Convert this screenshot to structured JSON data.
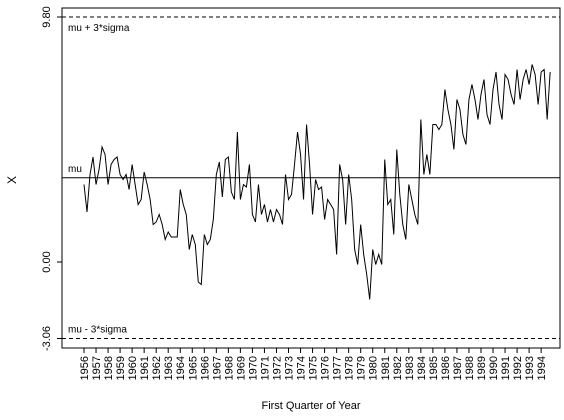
{
  "chart_data": {
    "type": "line",
    "x_label": "First Quarter of Year",
    "y_label": "X",
    "categories": [
      "1956",
      null,
      null,
      null,
      "1957",
      null,
      null,
      null,
      "1958",
      null,
      null,
      null,
      "1959",
      null,
      null,
      null,
      "1960",
      null,
      null,
      null,
      "1961",
      null,
      null,
      null,
      "1962",
      null,
      null,
      null,
      "1963",
      null,
      null,
      null,
      "1964",
      null,
      null,
      null,
      "1965",
      null,
      null,
      null,
      "1966",
      null,
      null,
      null,
      "1967",
      null,
      null,
      null,
      "1968",
      null,
      null,
      null,
      "1969",
      null,
      null,
      null,
      "1970",
      null,
      null,
      null,
      "1971",
      null,
      null,
      null,
      "1972",
      null,
      null,
      null,
      "1973",
      null,
      null,
      null,
      "1974",
      null,
      null,
      null,
      "1975",
      null,
      null,
      null,
      "1976",
      null,
      null,
      null,
      "1977",
      null,
      null,
      null,
      "1978",
      null,
      null,
      null,
      "1979",
      null,
      null,
      null,
      "1980",
      null,
      null,
      null,
      "1981",
      null,
      null,
      null,
      "1982",
      null,
      null,
      null,
      "1983",
      null,
      null,
      null,
      "1984",
      null,
      null,
      null,
      "1985",
      null,
      null,
      null,
      "1986",
      null,
      null,
      null,
      "1987",
      null,
      null,
      null,
      "1988",
      null,
      null,
      null,
      "1989",
      null,
      null,
      null,
      "1990",
      null,
      null,
      null,
      "1991",
      null,
      null,
      null,
      "1992",
      null,
      null,
      null,
      "1993",
      null,
      null,
      null,
      "1994",
      null,
      null,
      null
    ],
    "values": [
      3.1,
      2.0,
      3.5,
      4.2,
      3.1,
      3.7,
      4.6,
      4.3,
      3.1,
      3.9,
      4.1,
      4.2,
      3.5,
      3.3,
      3.5,
      2.9,
      3.9,
      3.1,
      2.3,
      2.5,
      3.6,
      3.1,
      2.5,
      1.5,
      1.6,
      1.9,
      1.5,
      0.9,
      1.2,
      1.0,
      1.0,
      1.0,
      2.9,
      2.3,
      1.9,
      0.5,
      1.1,
      0.7,
      -0.8,
      -0.9,
      1.1,
      0.7,
      0.9,
      1.7,
      3.5,
      4.0,
      2.6,
      4.1,
      4.2,
      2.8,
      2.5,
      5.2,
      2.5,
      3.1,
      3.0,
      3.9,
      1.9,
      1.6,
      3.1,
      1.9,
      2.3,
      1.6,
      2.1,
      1.6,
      2.1,
      1.9,
      1.5,
      3.5,
      2.5,
      2.7,
      3.9,
      5.2,
      4.3,
      2.5,
      5.5,
      3.9,
      1.9,
      3.3,
      2.9,
      3.0,
      1.7,
      2.5,
      2.3,
      2.1,
      0.3,
      3.9,
      3.3,
      1.5,
      3.5,
      2.5,
      0.5,
      -0.1,
      1.5,
      0.3,
      -0.5,
      -1.5,
      0.5,
      -0.1,
      0.3,
      -0.1,
      4.1,
      2.3,
      2.5,
      1.1,
      4.5,
      2.7,
      1.5,
      0.9,
      3.1,
      2.5,
      1.9,
      1.5,
      5.7,
      3.5,
      4.3,
      3.5,
      5.5,
      5.5,
      5.3,
      5.5,
      6.9,
      6.1,
      5.5,
      4.5,
      6.5,
      6.1,
      5.1,
      4.7,
      6.5,
      7.1,
      6.5,
      5.7,
      6.7,
      7.3,
      5.9,
      5.5,
      6.9,
      7.6,
      6.3,
      5.7,
      7.5,
      7.3,
      6.7,
      6.3,
      7.7,
      6.5,
      7.3,
      7.7,
      7.1,
      7.9,
      7.5,
      6.3,
      7.6,
      7.7,
      5.7,
      7.6
    ],
    "color": "#000000",
    "ylim": [
      -3.44,
      10.16
    ],
    "yticks": [
      -3.06,
      {
        "value": 0,
        "label": "0.00"
      },
      {
        "value": 9.8,
        "label": "9.80"
      }
    ],
    "reference_lines": [
      {
        "value": 9.8,
        "label": "mu + 3*sigma",
        "style": "dashed"
      },
      {
        "value": 3.37,
        "label": "mu",
        "style": "solid"
      },
      {
        "value": -3.06,
        "label": "mu - 3*sigma",
        "style": "dashed"
      }
    ]
  }
}
